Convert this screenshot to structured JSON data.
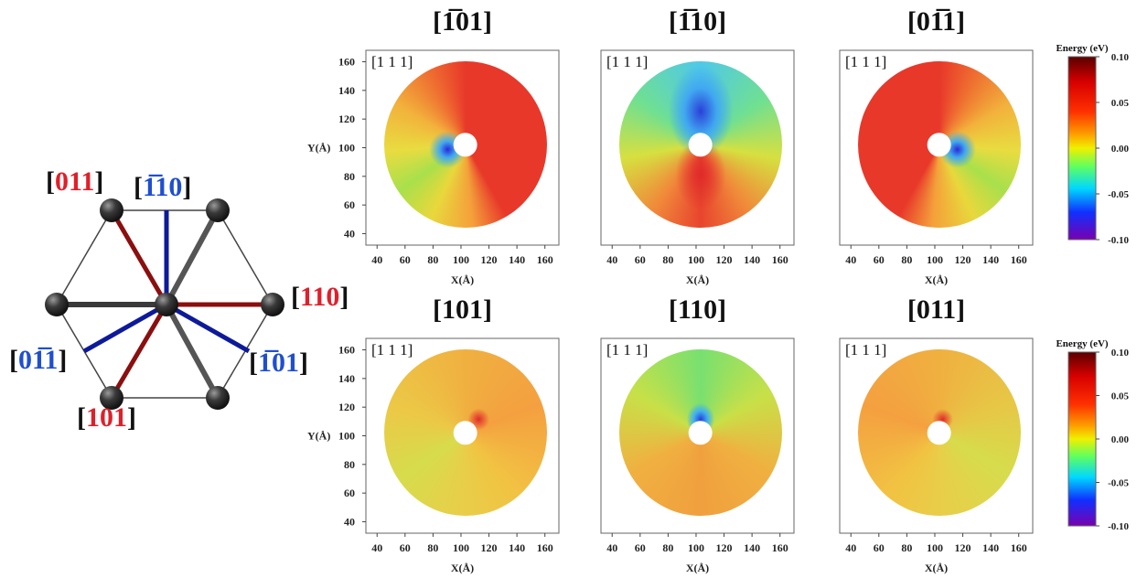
{
  "diagram": {
    "labels": [
      {
        "text": "[011]",
        "color": "#e0202a"
      },
      {
        "text": "[1̅10]",
        "color": "#1f4fd0"
      },
      {
        "text": "[110]",
        "color": "#e0202a"
      },
      {
        "text": "[01̅1]",
        "color": "#1f4fd0"
      },
      {
        "text": "[1̅01]",
        "color": "#1f4fd0"
      },
      {
        "text": "[101]",
        "color": "#e0202a"
      }
    ]
  },
  "panels": [
    {
      "title": "[1̅01]",
      "zone": "[1 1 1]",
      "x_label": "X(Å)",
      "y_label": "Y(Å)",
      "xlim": [
        32,
        170
      ],
      "ylim": [
        32,
        168
      ],
      "xticks": [
        40,
        60,
        80,
        100,
        120,
        140,
        160
      ],
      "yticks": [
        40,
        60,
        80,
        100,
        120,
        140,
        160
      ]
    },
    {
      "title": "[1̅10]",
      "zone": "[1 1 1]",
      "x_label": "X(Å)",
      "xlim": [
        32,
        170
      ],
      "ylim": [
        32,
        168
      ],
      "xticks": [
        40,
        60,
        80,
        100,
        120,
        140,
        160
      ]
    },
    {
      "title": "[01̅1]",
      "zone": "[1 1 1]",
      "x_label": "X(Å)",
      "xlim": [
        32,
        170
      ],
      "ylim": [
        32,
        168
      ],
      "xticks": [
        40,
        60,
        80,
        100,
        120,
        140,
        160
      ]
    },
    {
      "title": "[101]",
      "zone": "[1 1 1]",
      "x_label": "X(Å)",
      "y_label": "Y(Å)",
      "xlim": [
        32,
        170
      ],
      "ylim": [
        32,
        168
      ],
      "xticks": [
        40,
        60,
        80,
        100,
        120,
        140,
        160
      ],
      "yticks": [
        40,
        60,
        80,
        100,
        120,
        140,
        160
      ]
    },
    {
      "title": "[110]",
      "zone": "[1 1 1]",
      "x_label": "X(Å)",
      "xlim": [
        32,
        170
      ],
      "ylim": [
        32,
        168
      ],
      "xticks": [
        40,
        60,
        80,
        100,
        120,
        140,
        160
      ]
    },
    {
      "title": "[011]",
      "zone": "[1 1 1]",
      "x_label": "X(Å)",
      "xlim": [
        32,
        170
      ],
      "ylim": [
        32,
        168
      ],
      "xticks": [
        40,
        60,
        80,
        100,
        120,
        140,
        160
      ]
    }
  ],
  "colorbars": [
    {
      "title": "Energy (eV)",
      "lim": [
        -0.1,
        0.1
      ],
      "ticks": [
        {
          "value": 0.1,
          "label": "0.10"
        },
        {
          "value": 0.05,
          "label": "0.05"
        },
        {
          "value": 0,
          "label": "0.00"
        },
        {
          "value": -0.05,
          "label": "-0.05"
        },
        {
          "value": -0.1,
          "label": "-0.10"
        }
      ]
    },
    {
      "title": "Energy (eV)",
      "lim": [
        -0.1,
        0.1
      ],
      "ticks": [
        {
          "value": 0.1,
          "label": "0.10"
        },
        {
          "value": 0.05,
          "label": "0.05"
        },
        {
          "value": 0,
          "label": "0.00"
        },
        {
          "value": -0.05,
          "label": "-0.05"
        },
        {
          "value": -0.1,
          "label": "-0.10"
        }
      ]
    }
  ]
}
